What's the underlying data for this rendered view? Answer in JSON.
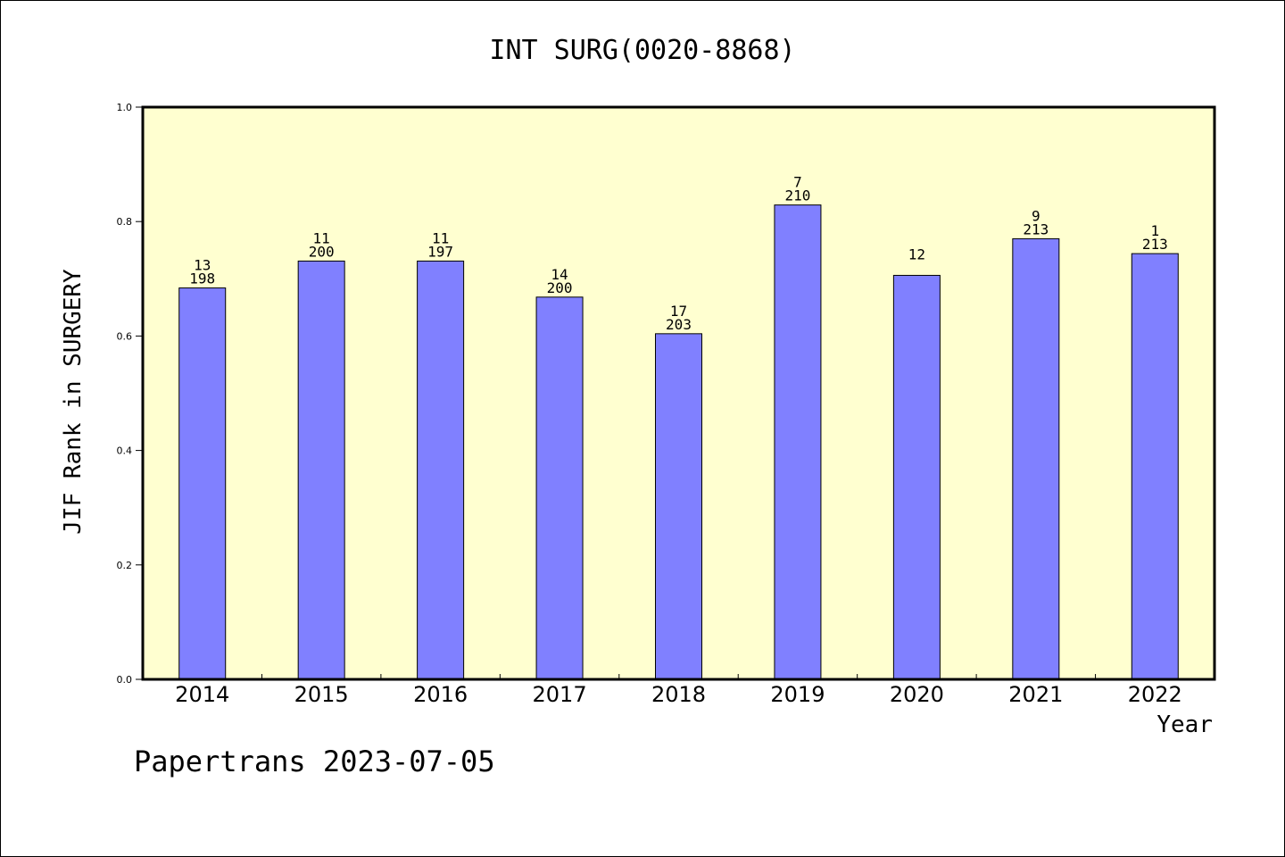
{
  "chart_data": {
    "type": "bar",
    "title": "INT SURG(0020-8868)",
    "xlabel": "Year",
    "ylabel": "JIF Rank in SURGERY",
    "ylim": [
      0,
      1.0
    ],
    "yticks": [
      "0.0",
      "0.2",
      "0.4",
      "0.6",
      "0.8",
      "1.0"
    ],
    "categories": [
      "2014",
      "2015",
      "2016",
      "2017",
      "2018",
      "2019",
      "2020",
      "2021",
      "2022"
    ],
    "values": [
      0.684,
      0.731,
      0.731,
      0.668,
      0.604,
      0.829,
      0.706,
      0.77,
      0.744
    ],
    "ranks": [
      "13",
      "11",
      "11",
      "14",
      "17",
      "7",
      "12",
      "9",
      "1"
    ],
    "totals": [
      "198",
      "200",
      "197",
      "200",
      "203",
      "210",
      "",
      "213",
      "213"
    ],
    "grid": false,
    "legend": "none",
    "bar_color": "#8080ff",
    "plot_background": "#ffffd0"
  },
  "footer": "Papertrans 2023-07-05"
}
